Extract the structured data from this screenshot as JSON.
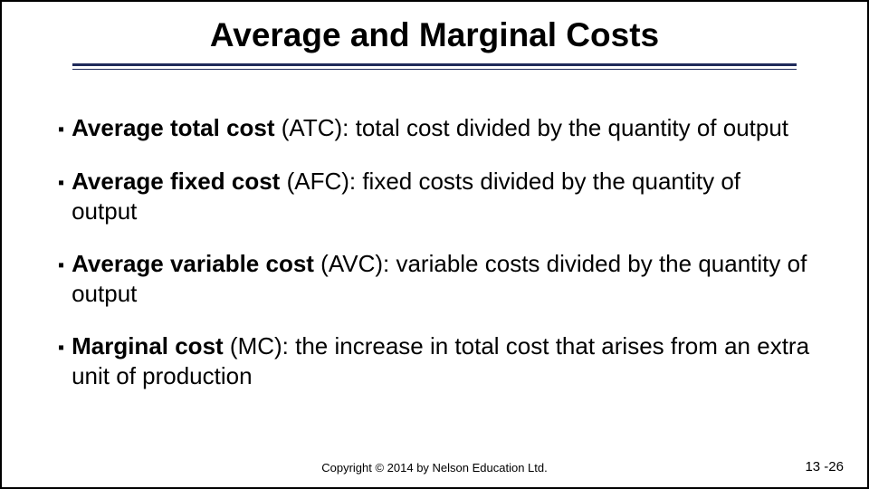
{
  "title": "Average and Marginal Costs",
  "bullets": [
    {
      "term": "Average total cost",
      "rest": " (ATC): total cost divided by the quantity of output"
    },
    {
      "term": "Average fixed cost",
      "rest": " (AFC): fixed costs divided by the quantity of output"
    },
    {
      "term": "Average variable cost",
      "rest": " (AVC): variable costs divided by the quantity of output"
    },
    {
      "term": "Marginal cost",
      "rest": " (MC): the increase in total cost that arises from an extra unit of production"
    }
  ],
  "copyright": "Copyright © 2014 by Nelson Education Ltd.",
  "page_number": "13 -26",
  "colors": {
    "underline": "#1f2a5a",
    "text": "#000000",
    "background": "#ffffff"
  }
}
